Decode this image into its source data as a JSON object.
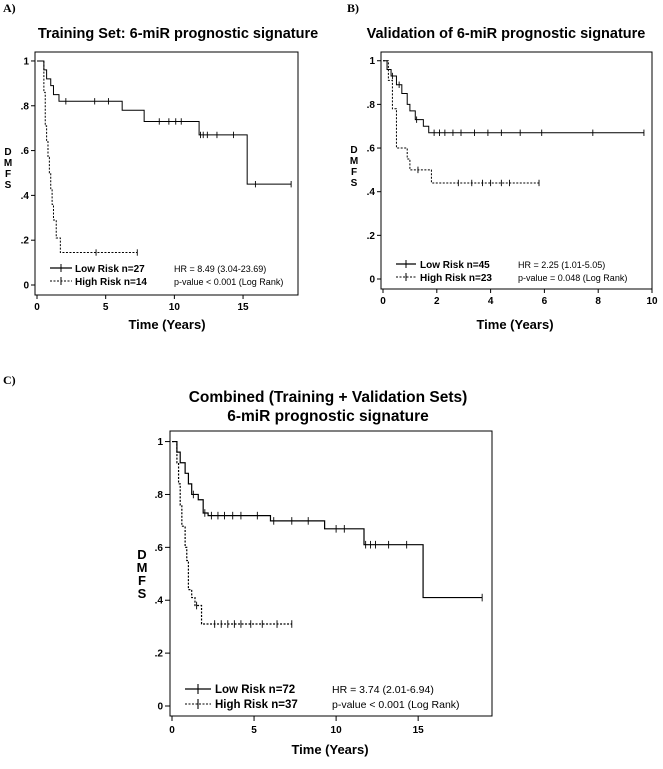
{
  "chart_data": [
    {
      "panel": "A)",
      "type": "line",
      "title": "Training Set: 6-miR prognostic signature",
      "xlabel": "Time (Years)",
      "ylabel": "DMFS",
      "xlim": [
        0,
        19
      ],
      "ylim": [
        0,
        1.04
      ],
      "xticks": [
        0,
        5,
        10,
        15
      ],
      "yticks": [
        0,
        0.2,
        0.4,
        0.6,
        0.8,
        1.0
      ],
      "ytick_labels": [
        "0",
        ".2",
        ".4",
        ".6",
        ".8",
        "1"
      ],
      "legend": "bottom-left",
      "stats": [
        "HR = 8.49 (3.04-23.69)",
        "p-value < 0.001 (Log Rank)"
      ],
      "series": [
        {
          "name": "Low Risk n=27",
          "style": "solid",
          "steps": [
            [
              0,
              1.0
            ],
            [
              0.5,
              0.96
            ],
            [
              0.7,
              0.92
            ],
            [
              1.0,
              0.89
            ],
            [
              1.2,
              0.85
            ],
            [
              1.6,
              0.82
            ],
            [
              6.2,
              0.78
            ],
            [
              7.8,
              0.73
            ],
            [
              11.8,
              0.67
            ],
            [
              15.3,
              0.45
            ],
            [
              18.5,
              0.45
            ]
          ],
          "censored": [
            [
              2.1,
              0.82
            ],
            [
              4.2,
              0.82
            ],
            [
              5.2,
              0.82
            ],
            [
              8.9,
              0.73
            ],
            [
              9.6,
              0.73
            ],
            [
              10.1,
              0.73
            ],
            [
              10.5,
              0.73
            ],
            [
              11.9,
              0.67
            ],
            [
              12.1,
              0.67
            ],
            [
              12.4,
              0.67
            ],
            [
              13.1,
              0.67
            ],
            [
              14.3,
              0.67
            ],
            [
              15.9,
              0.45
            ],
            [
              18.5,
              0.45
            ]
          ]
        },
        {
          "name": "High Risk n=14",
          "style": "dashed",
          "steps": [
            [
              0,
              1.0
            ],
            [
              0.5,
              0.86
            ],
            [
              0.6,
              0.71
            ],
            [
              0.7,
              0.64
            ],
            [
              0.8,
              0.57
            ],
            [
              0.9,
              0.5
            ],
            [
              1.0,
              0.43
            ],
            [
              1.1,
              0.36
            ],
            [
              1.2,
              0.29
            ],
            [
              1.4,
              0.21
            ],
            [
              1.7,
              0.145
            ],
            [
              7.3,
              0.145
            ]
          ],
          "censored": [
            [
              4.3,
              0.145
            ],
            [
              7.3,
              0.145
            ]
          ]
        }
      ]
    },
    {
      "panel": "B)",
      "type": "line",
      "title": "Validation of 6-miR prognostic signature",
      "xlabel": "Time (Years)",
      "ylabel": "DMFS",
      "xlim": [
        0,
        10
      ],
      "ylim": [
        0,
        1.04
      ],
      "xticks": [
        0,
        2,
        4,
        6,
        8,
        10
      ],
      "yticks": [
        0,
        0.2,
        0.4,
        0.6,
        0.8,
        1.0
      ],
      "ytick_labels": [
        "0",
        ".2",
        ".4",
        ".6",
        ".8",
        "1"
      ],
      "legend": "bottom-left",
      "stats": [
        "HR = 2.25 (1.01-5.05)",
        "p-value = 0.048 (Log Rank)"
      ],
      "series": [
        {
          "name": "Low Risk n=45",
          "style": "solid",
          "steps": [
            [
              0,
              1.0
            ],
            [
              0.15,
              0.96
            ],
            [
              0.3,
              0.93
            ],
            [
              0.5,
              0.89
            ],
            [
              0.7,
              0.85
            ],
            [
              0.9,
              0.8
            ],
            [
              1.0,
              0.77
            ],
            [
              1.2,
              0.73
            ],
            [
              1.5,
              0.7
            ],
            [
              1.7,
              0.67
            ],
            [
              9.7,
              0.67
            ]
          ],
          "censored": [
            [
              0.35,
              0.93
            ],
            [
              0.6,
              0.89
            ],
            [
              1.25,
              0.73
            ],
            [
              1.9,
              0.67
            ],
            [
              2.1,
              0.67
            ],
            [
              2.3,
              0.67
            ],
            [
              2.6,
              0.67
            ],
            [
              2.9,
              0.67
            ],
            [
              3.4,
              0.67
            ],
            [
              3.9,
              0.67
            ],
            [
              4.4,
              0.67
            ],
            [
              5.1,
              0.67
            ],
            [
              5.9,
              0.67
            ],
            [
              7.8,
              0.67
            ],
            [
              9.7,
              0.67
            ]
          ]
        },
        {
          "name": "High Risk n=23",
          "style": "dashed",
          "steps": [
            [
              0,
              1.0
            ],
            [
              0.2,
              0.91
            ],
            [
              0.35,
              0.78
            ],
            [
              0.5,
              0.6
            ],
            [
              0.9,
              0.55
            ],
            [
              1.0,
              0.5
            ],
            [
              1.8,
              0.44
            ],
            [
              5.8,
              0.44
            ]
          ],
          "censored": [
            [
              1.3,
              0.5
            ],
            [
              2.8,
              0.44
            ],
            [
              3.3,
              0.44
            ],
            [
              3.7,
              0.44
            ],
            [
              4.0,
              0.44
            ],
            [
              4.4,
              0.44
            ],
            [
              4.7,
              0.44
            ],
            [
              5.8,
              0.44
            ]
          ]
        }
      ]
    },
    {
      "panel": "C)",
      "type": "line",
      "title": "Combined (Training + Validation Sets)",
      "subtitle": "6-miR prognostic signature",
      "xlabel": "Time (Years)",
      "ylabel": "DMFS",
      "xlim": [
        0,
        19.5
      ],
      "ylim": [
        0,
        1.04
      ],
      "xticks": [
        0,
        5,
        10,
        15
      ],
      "yticks": [
        0,
        0.2,
        0.4,
        0.6,
        0.8,
        1.0
      ],
      "ytick_labels": [
        "0",
        ".2",
        ".4",
        ".6",
        ".8",
        "1"
      ],
      "legend": "bottom-left",
      "stats": [
        "HR = 3.74 (2.01-6.94)",
        "p-value < 0.001 (Log Rank)"
      ],
      "series": [
        {
          "name": "Low Risk n=72",
          "style": "solid",
          "steps": [
            [
              0,
              1.0
            ],
            [
              0.3,
              0.96
            ],
            [
              0.5,
              0.92
            ],
            [
              0.8,
              0.88
            ],
            [
              1.0,
              0.84
            ],
            [
              1.2,
              0.8
            ],
            [
              1.6,
              0.78
            ],
            [
              1.9,
              0.73
            ],
            [
              2.2,
              0.72
            ],
            [
              6.0,
              0.7
            ],
            [
              9.3,
              0.67
            ],
            [
              11.7,
              0.61
            ],
            [
              15.3,
              0.41
            ],
            [
              18.9,
              0.41
            ]
          ],
          "censored": [
            [
              1.3,
              0.8
            ],
            [
              2.0,
              0.73
            ],
            [
              2.4,
              0.72
            ],
            [
              2.8,
              0.72
            ],
            [
              3.2,
              0.72
            ],
            [
              3.7,
              0.72
            ],
            [
              4.2,
              0.72
            ],
            [
              5.2,
              0.72
            ],
            [
              6.2,
              0.7
            ],
            [
              7.3,
              0.7
            ],
            [
              8.3,
              0.7
            ],
            [
              10.0,
              0.67
            ],
            [
              10.5,
              0.67
            ],
            [
              11.8,
              0.61
            ],
            [
              12.1,
              0.61
            ],
            [
              12.4,
              0.61
            ],
            [
              13.2,
              0.61
            ],
            [
              14.3,
              0.61
            ],
            [
              18.9,
              0.41
            ]
          ]
        },
        {
          "name": "High Risk n=37",
          "style": "dashed",
          "steps": [
            [
              0,
              1.0
            ],
            [
              0.3,
              0.92
            ],
            [
              0.4,
              0.84
            ],
            [
              0.5,
              0.76
            ],
            [
              0.6,
              0.68
            ],
            [
              0.8,
              0.6
            ],
            [
              0.9,
              0.55
            ],
            [
              1.0,
              0.44
            ],
            [
              1.2,
              0.41
            ],
            [
              1.4,
              0.38
            ],
            [
              1.8,
              0.31
            ],
            [
              7.3,
              0.31
            ]
          ],
          "censored": [
            [
              1.5,
              0.38
            ],
            [
              2.6,
              0.31
            ],
            [
              3.0,
              0.31
            ],
            [
              3.4,
              0.31
            ],
            [
              3.8,
              0.31
            ],
            [
              4.2,
              0.31
            ],
            [
              4.8,
              0.31
            ],
            [
              5.5,
              0.31
            ],
            [
              6.4,
              0.31
            ],
            [
              7.3,
              0.31
            ]
          ]
        }
      ]
    }
  ]
}
